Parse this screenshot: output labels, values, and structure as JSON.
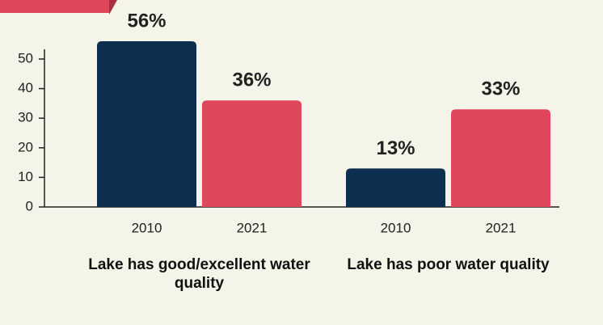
{
  "chart_data": {
    "type": "bar",
    "categories": [
      "Lake has good/excellent water quality",
      "Lake has poor water quality"
    ],
    "series": [
      {
        "name": "2010",
        "color": "#0d2f4f",
        "values": [
          56,
          13
        ],
        "value_labels": [
          "56%",
          "13%"
        ]
      },
      {
        "name": "2021",
        "color": "#e0465c",
        "values": [
          36,
          33
        ],
        "value_labels": [
          "36%",
          "33%"
        ]
      }
    ],
    "ylim": [
      0,
      60
    ],
    "yticks": [
      0,
      10,
      20,
      30,
      40,
      50
    ]
  }
}
